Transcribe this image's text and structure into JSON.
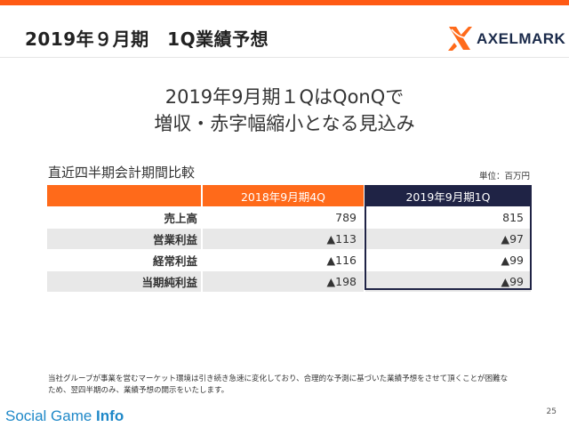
{
  "slide": {
    "title": "2019年９月期　1Q業績予想",
    "logo_text": "AXELMARK",
    "headline_line1": "2019年9月期１QはQonQで",
    "headline_line2": "増収・赤字幅縮小となる見込み",
    "page_number": "25"
  },
  "table": {
    "caption": "直近四半期会計期間比較",
    "unit": "単位：百万円",
    "columns": [
      "2018年9月期4Q",
      "2019年9月期1Q"
    ],
    "rows": [
      {
        "label": "売上高",
        "values": [
          "789",
          "815"
        ]
      },
      {
        "label": "営業利益",
        "values": [
          "▲113",
          "▲97"
        ]
      },
      {
        "label": "経常利益",
        "values": [
          "▲116",
          "▲99"
        ]
      },
      {
        "label": "当期純利益",
        "values": [
          "▲198",
          "▲99"
        ]
      }
    ]
  },
  "footnote": {
    "line1": "当社グループが事業を営むマーケット環境は引き続き急速に変化しており、合理的な予測に基づいた業績予想をさせて頂くことが困難な",
    "line2": "ため、翌四半期のみ、業績予想の開示をいたします。"
  },
  "watermark": {
    "part1": "Social Game ",
    "part2": "Info"
  },
  "colors": {
    "accent_orange": "#ff5a14",
    "header_orange": "#ff6a1a",
    "highlight_navy": "#1f2345",
    "row_shade": "#e8e8e8",
    "watermark_blue": "#1e88c8"
  },
  "icons": {
    "logo": "axelmark-x-logo-icon"
  }
}
